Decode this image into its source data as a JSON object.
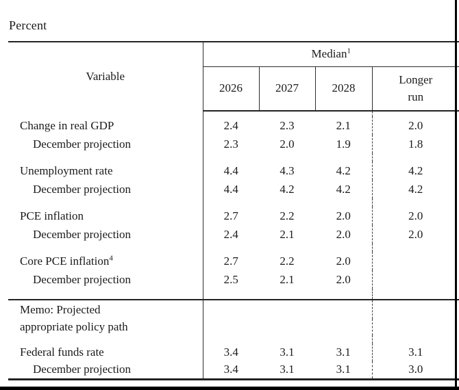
{
  "page": {
    "percent_label": "Percent"
  },
  "colors": {
    "background": "#ffffff",
    "text": "#1a1a1a",
    "rule": "#222222"
  },
  "table": {
    "variable_header": "Variable",
    "median_label": "Median",
    "median_sup": "1",
    "year_headers": [
      "2026",
      "2027",
      "2028"
    ],
    "longer_run": [
      "Longer",
      "run"
    ],
    "rows": [
      {
        "label": "Change in real GDP",
        "values": [
          "2.4",
          "2.3",
          "2.1",
          "2.0"
        ]
      },
      {
        "label": "December projection",
        "values": [
          "2.3",
          "2.0",
          "1.9",
          "1.8"
        ]
      },
      {
        "label": "Unemployment rate",
        "values": [
          "4.4",
          "4.3",
          "4.2",
          "4.2"
        ]
      },
      {
        "label": "December projection",
        "values": [
          "4.4",
          "4.2",
          "4.2",
          "4.2"
        ]
      },
      {
        "label": "PCE inflation",
        "values": [
          "2.7",
          "2.2",
          "2.0",
          "2.0"
        ]
      },
      {
        "label": "December projection",
        "values": [
          "2.4",
          "2.1",
          "2.0",
          "2.0"
        ]
      },
      {
        "label": "Core PCE inflation",
        "sup": "4",
        "values": [
          "2.7",
          "2.2",
          "2.0",
          ""
        ]
      },
      {
        "label": "December projection",
        "values": [
          "2.5",
          "2.1",
          "2.0",
          ""
        ]
      }
    ],
    "memo": {
      "line1": "Memo: Projected",
      "line2": "appropriate policy path"
    },
    "memo_rows": [
      {
        "label": "Federal funds rate",
        "values": [
          "3.4",
          "3.1",
          "3.1",
          "3.1"
        ]
      },
      {
        "label": "December projection",
        "values": [
          "3.4",
          "3.1",
          "3.1",
          "3.0"
        ]
      }
    ]
  }
}
